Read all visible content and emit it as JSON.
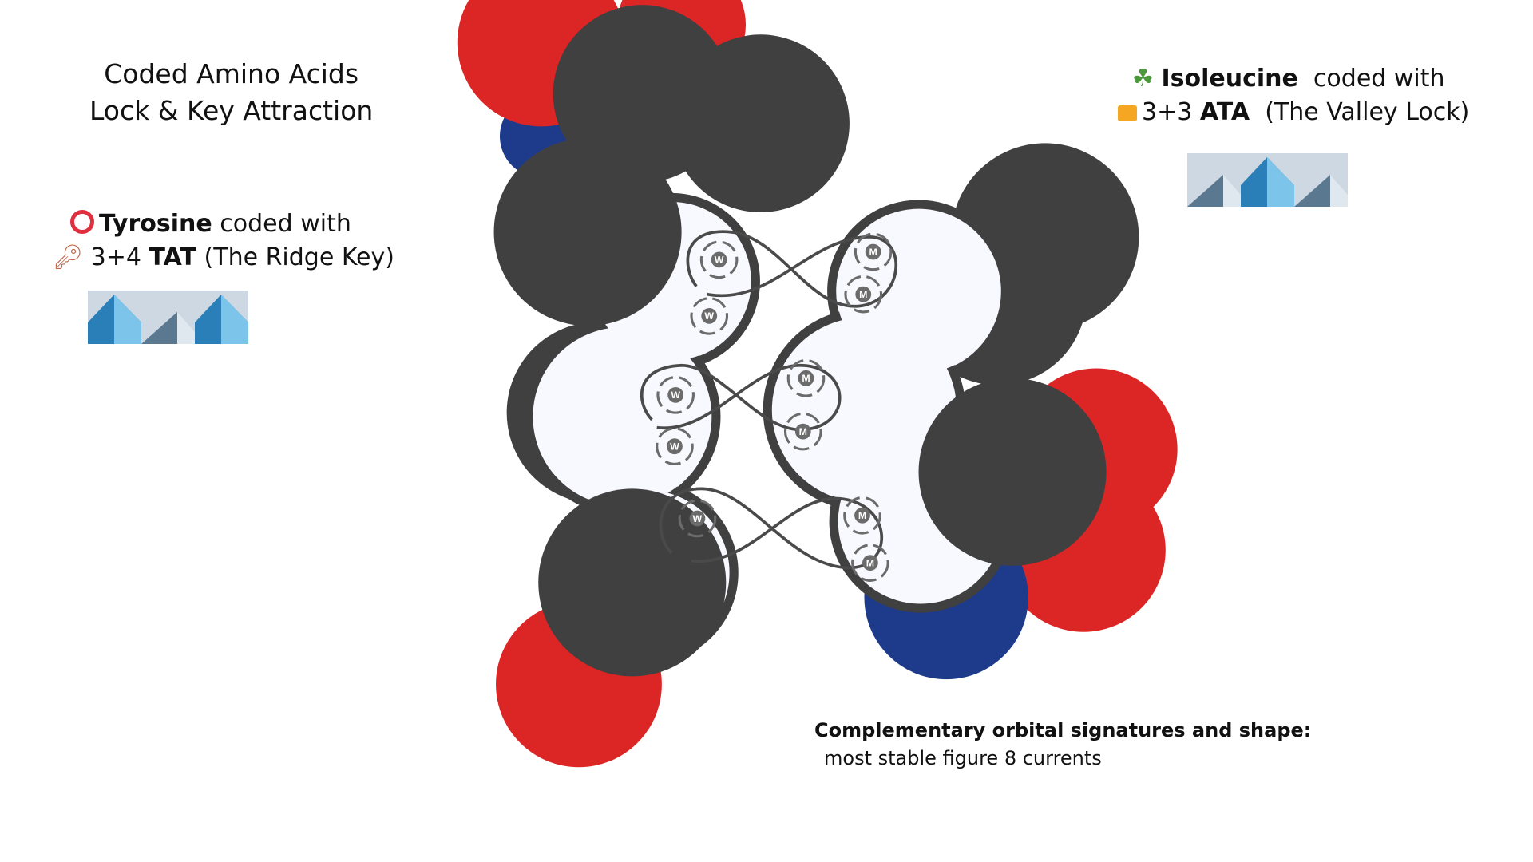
{
  "title": {
    "line1": "Coded Amino Acids",
    "line2": "Lock & Key Attraction"
  },
  "tyrosine": {
    "icon": "hollow-red-circle-icon",
    "name": "Tyrosine",
    "coded_with": "coded with",
    "key_icon": "key-icon",
    "code_prefix": "3+4",
    "code": "TAT",
    "description": "(The Ridge Key)",
    "tiles": [
      "ridge",
      "valley",
      "ridge"
    ]
  },
  "isoleucine": {
    "icon": "herb-sprig-icon",
    "name": "Isoleucine",
    "coded_with": "coded with",
    "lock_icon": "locked-with-key-icon",
    "code_prefix": "3+3",
    "code": "ATA",
    "description": "(The Valley Lock)",
    "tiles": [
      "valley",
      "ridge",
      "valley"
    ]
  },
  "caption": {
    "bold": "Complementary orbital signatures and shape:",
    "sub": "most stable figure 8 currents"
  },
  "vortex_labels": {
    "left": "W",
    "right": "M"
  },
  "colors": {
    "dark": "#404040",
    "red": "#dc2626",
    "blue": "#1e3a8a",
    "lobe": "#f8f8ff",
    "glyph": "#6b6b6b"
  }
}
